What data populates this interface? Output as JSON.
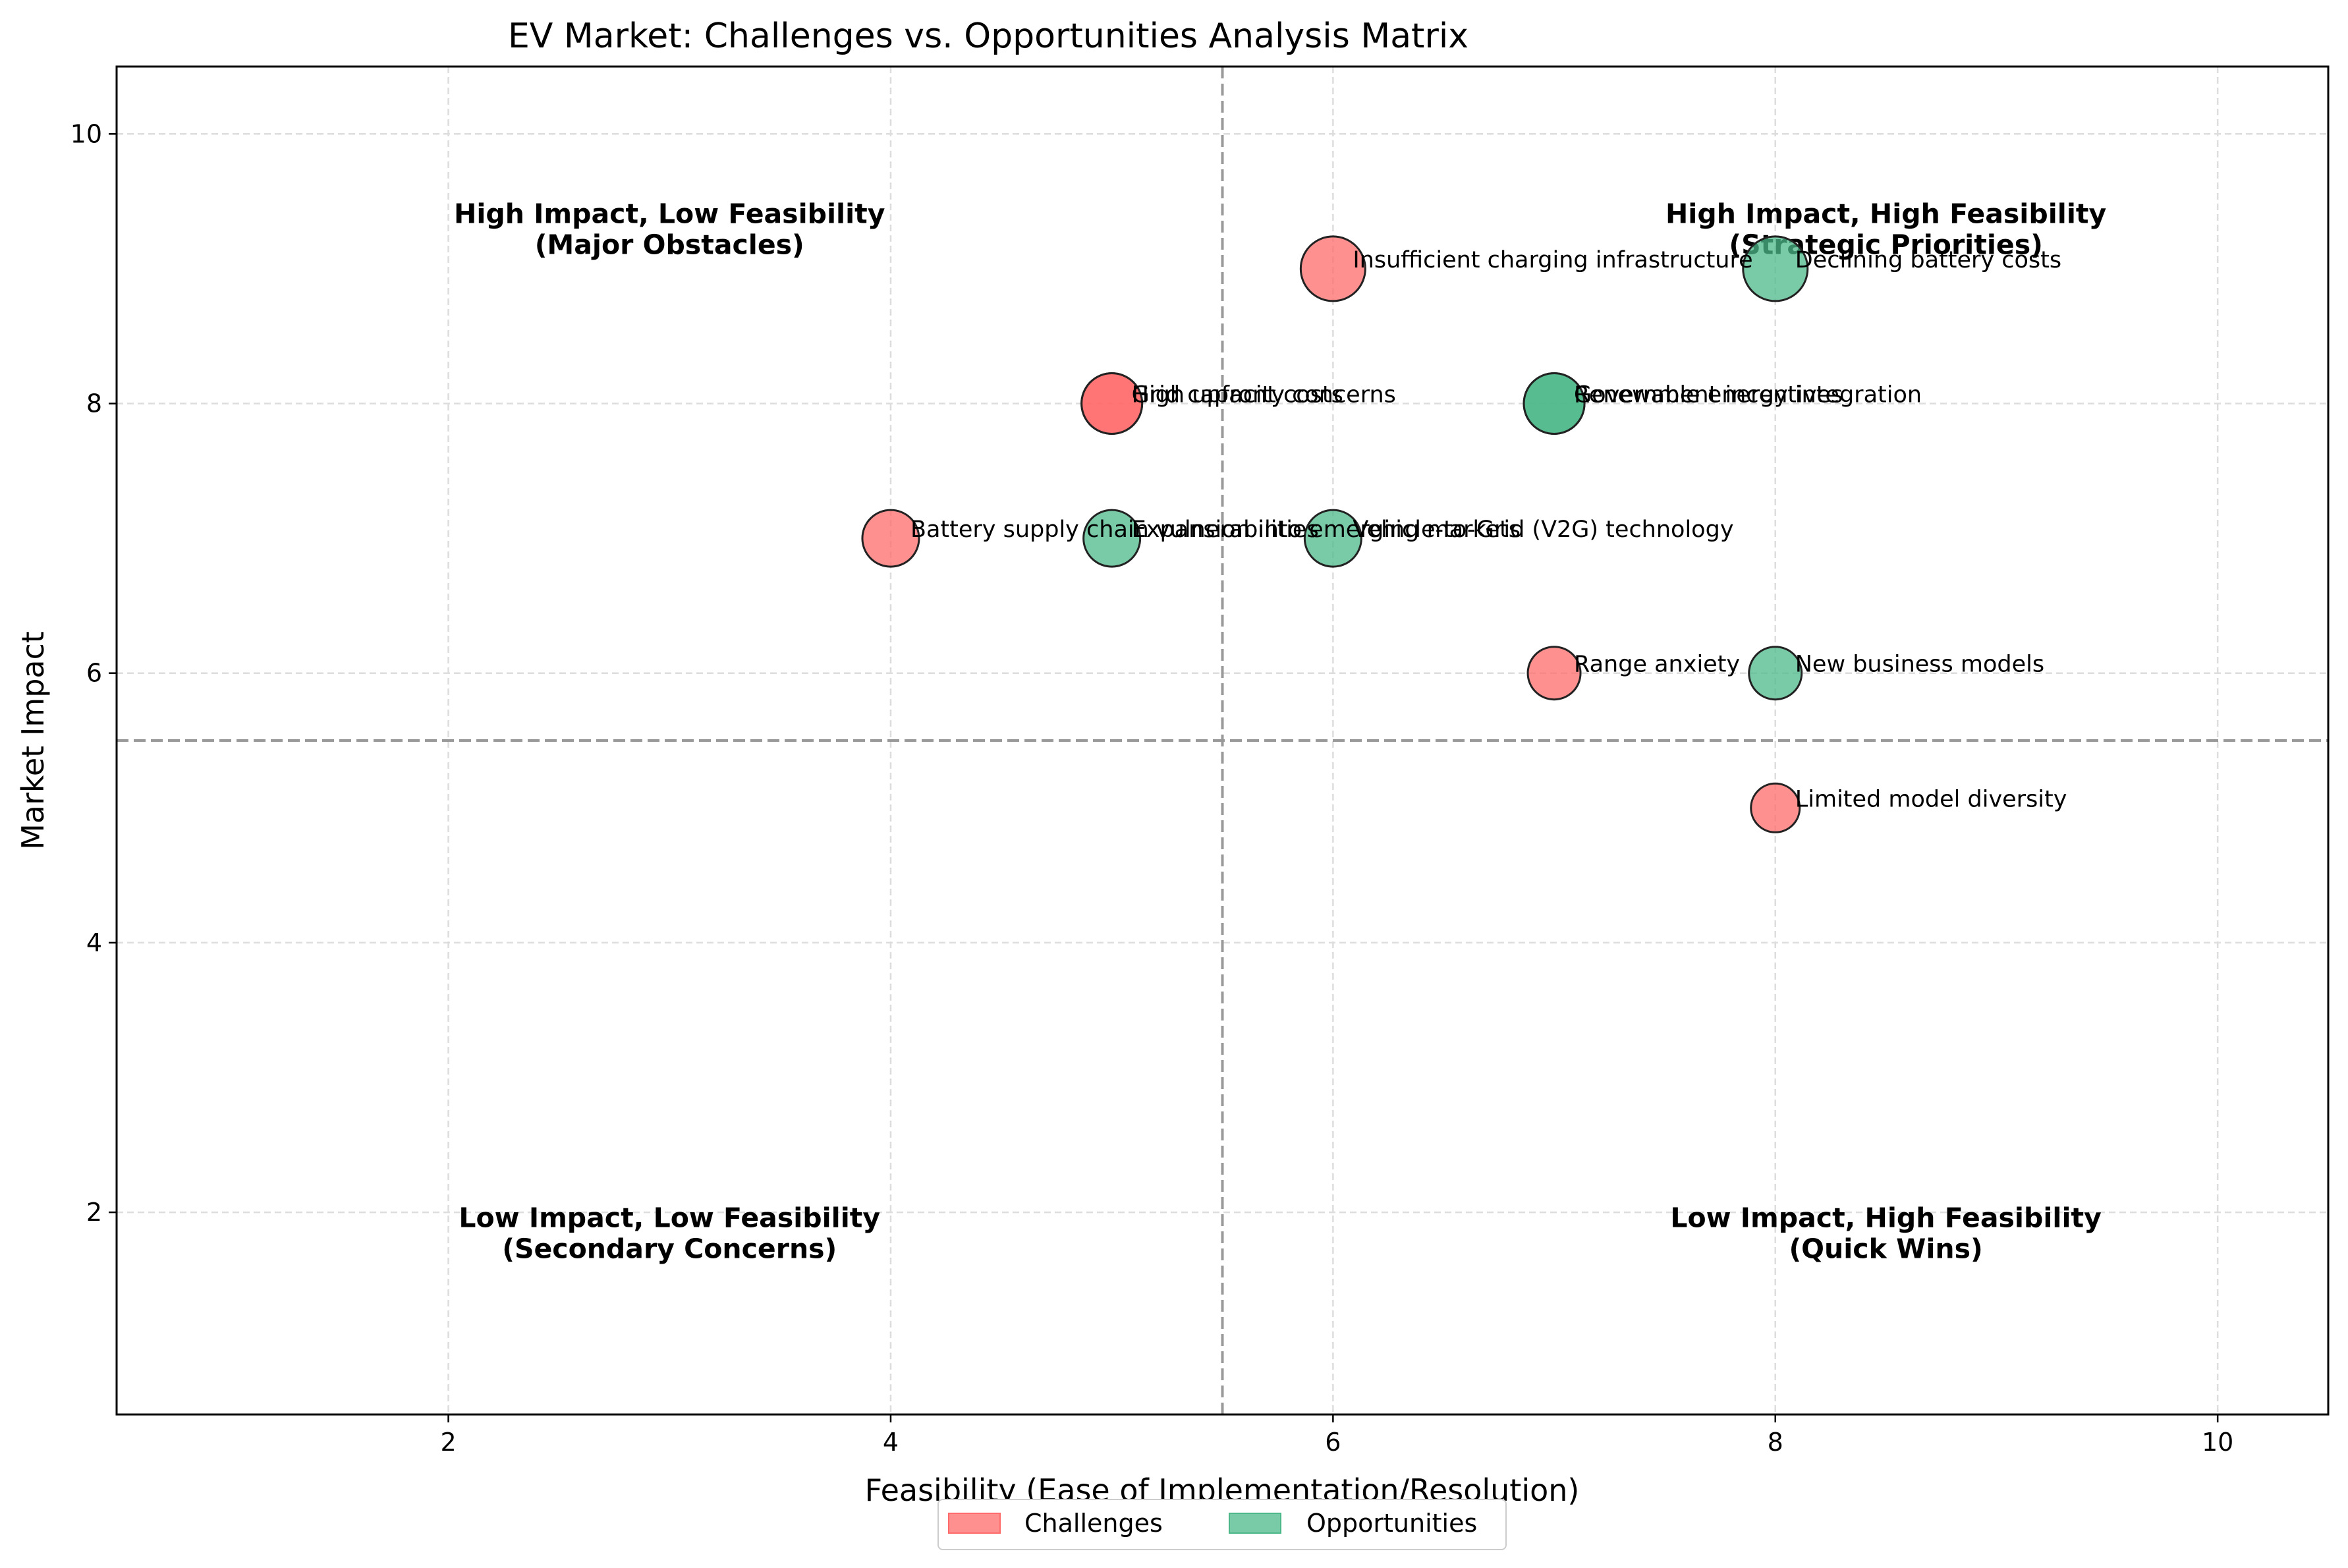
{
  "chart_data": {
    "type": "scatter",
    "title": "EV Market: Challenges vs. Opportunities Analysis Matrix",
    "xlabel": "Feasibility (Ease of Implementation/Resolution)",
    "ylabel": "Market Impact",
    "xlim": [
      0.5,
      10.5
    ],
    "ylim": [
      0.5,
      10.5
    ],
    "xticks": [
      2,
      4,
      6,
      8,
      10
    ],
    "yticks": [
      2,
      4,
      6,
      8,
      10
    ],
    "grid": true,
    "reference_lines": {
      "x": 5.5,
      "y": 5.5,
      "style": "dashed"
    },
    "legend_position": "bottom-center",
    "quadrant_labels": [
      {
        "line1": "High Impact, Low Feasibility",
        "line2": "(Major Obstacles)",
        "x": 3,
        "y": 9.3
      },
      {
        "line1": "High Impact, High Feasibility",
        "line2": "(Strategic Priorities)",
        "x": 8.5,
        "y": 9.3
      },
      {
        "line1": "Low Impact, Low Feasibility",
        "line2": "(Secondary Concerns)",
        "x": 3,
        "y": 1.85
      },
      {
        "line1": "Low Impact, High Feasibility",
        "line2": "(Quick Wins)",
        "x": 8.5,
        "y": 1.85
      }
    ],
    "series": [
      {
        "name": "Challenges",
        "color": "#ff6b6b",
        "points": [
          {
            "label": "Insufficient charging infrastructure",
            "x": 6,
            "y": 9,
            "size": 9
          },
          {
            "label": "High upfront costs",
            "x": 5,
            "y": 8,
            "size": 8
          },
          {
            "label": "Grid capacity concerns",
            "x": 5,
            "y": 8,
            "size": 8
          },
          {
            "label": "Battery supply chain vulnerabilities",
            "x": 4,
            "y": 7,
            "size": 7
          },
          {
            "label": "Range anxiety",
            "x": 7,
            "y": 6,
            "size": 6
          },
          {
            "label": "Limited model diversity",
            "x": 8,
            "y": 5,
            "size": 5
          }
        ]
      },
      {
        "name": "Opportunities",
        "color": "#4cb88a",
        "points": [
          {
            "label": "Declining battery costs",
            "x": 8,
            "y": 9,
            "size": 9
          },
          {
            "label": "Government incentives",
            "x": 7,
            "y": 8,
            "size": 8
          },
          {
            "label": "Renewable energy integration",
            "x": 7,
            "y": 8,
            "size": 8
          },
          {
            "label": "Expansion into emerging markets",
            "x": 5,
            "y": 7,
            "size": 7
          },
          {
            "label": "Vehicle-to-Grid (V2G) technology",
            "x": 6,
            "y": 7,
            "size": 7
          },
          {
            "label": "New business models",
            "x": 8,
            "y": 6,
            "size": 6
          }
        ]
      }
    ]
  }
}
